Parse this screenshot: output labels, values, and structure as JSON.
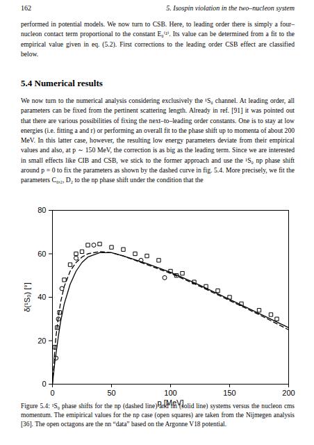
{
  "header": {
    "page_number": "162",
    "running_title": "5. Isospin violation in the two–nucleon system"
  },
  "paragraphs": [
    "performed in potential models. We now turn to CSB. Here, to leading order there is simply a four–nucleon contact term proportional to the constant E₀⁽²⁾. Its value can be determined from a fit to the empirical value given in eq. (5.2). First corrections to the leading order CSB effect are classified below.",
    "We now turn to the numerical analysis considering exclusively the ¹S₀ channel. At leading order, all parameters can be fixed from the pertinent scattering length. Already in ref. [91] it was pointed out that there are various possibilities of fixing the next–to–leading order constants. One is to stay at low energies (i.e. fitting a and r) or performing an overall fit to the phase shift up to momenta of about 200 MeV. In this latter case, however, the resulting low energy parameters deviate from their empirical values and also, at p ∼ 150 MeV, the correction is as big as the leading term. Since we are interested in small effects like CIB and CSB, we stick to the former approach and use the ¹S₀ np phase shift around p = 0 to fix the parameters as shown by the dashed curve in fig. 5.4. More precisely, we fit the parameters C₀,₂, D₂ to the np phase shift under the condition that the"
  ],
  "heading": "5.4 Numerical results",
  "chart_data": {
    "type": "line",
    "x_label": "p [MeV]",
    "y_label": "δ(¹S₀) [°]",
    "xlim": [
      0,
      200
    ],
    "xticks": [
      0,
      50,
      100,
      150,
      200
    ],
    "ylim": [
      0,
      80
    ],
    "yticks": [
      0,
      20,
      40,
      60,
      80
    ],
    "grid": false,
    "series": [
      {
        "type": "line",
        "line_style": "dashed",
        "color": "#000000",
        "x": [
          0,
          1,
          2,
          3,
          5,
          7,
          10,
          15,
          20,
          25,
          30,
          40,
          50,
          60,
          80,
          100,
          125,
          150,
          175,
          200
        ],
        "values": [
          0,
          8,
          16,
          22,
          31,
          38,
          45,
          52,
          56,
          58.5,
          60,
          61,
          60.5,
          59,
          55,
          51,
          45,
          38.5,
          32,
          25
        ]
      },
      {
        "type": "line",
        "line_style": "solid",
        "color": "#000000",
        "x": [
          0,
          1,
          2,
          3,
          5,
          7,
          10,
          15,
          20,
          25,
          30,
          40,
          50,
          60,
          80,
          100,
          125,
          150,
          175,
          200
        ],
        "values": [
          0,
          5,
          10,
          14,
          22,
          29,
          37,
          46,
          52,
          56,
          58.5,
          60.5,
          60.5,
          59,
          55.5,
          51.5,
          45.5,
          39,
          32.5,
          26
        ]
      },
      {
        "type": "scatter",
        "marker": "square",
        "color": "#000000",
        "x": [
          2,
          4,
          6,
          10,
          15,
          20,
          25,
          30,
          40,
          50,
          60,
          70,
          80,
          90,
          100,
          105,
          110,
          120,
          130,
          140,
          150,
          160,
          175,
          185,
          190
        ],
        "values": [
          17,
          26,
          33,
          48,
          55,
          60,
          61,
          64,
          64.5,
          63,
          62,
          60,
          59,
          57,
          52,
          50,
          51,
          47,
          45,
          43,
          40,
          37,
          34,
          32,
          30
        ]
      },
      {
        "type": "scatter",
        "marker": "octagon",
        "color": "#000000",
        "x": [
          3,
          5,
          8,
          20,
          35,
          75,
          95
        ],
        "values": [
          12,
          30,
          44,
          58,
          64,
          57,
          49
        ]
      }
    ]
  },
  "caption": "Figure 5.4: ¹S₀ phase shifts for the np (dashed line) and nn (solid line) systems versus the nucleon cms momentum. The emipirical values for the np case (open squares) are taken from the Nijmegen analysis [36]. The open octagons are the nn “data” based on the Argonne V18 potential."
}
